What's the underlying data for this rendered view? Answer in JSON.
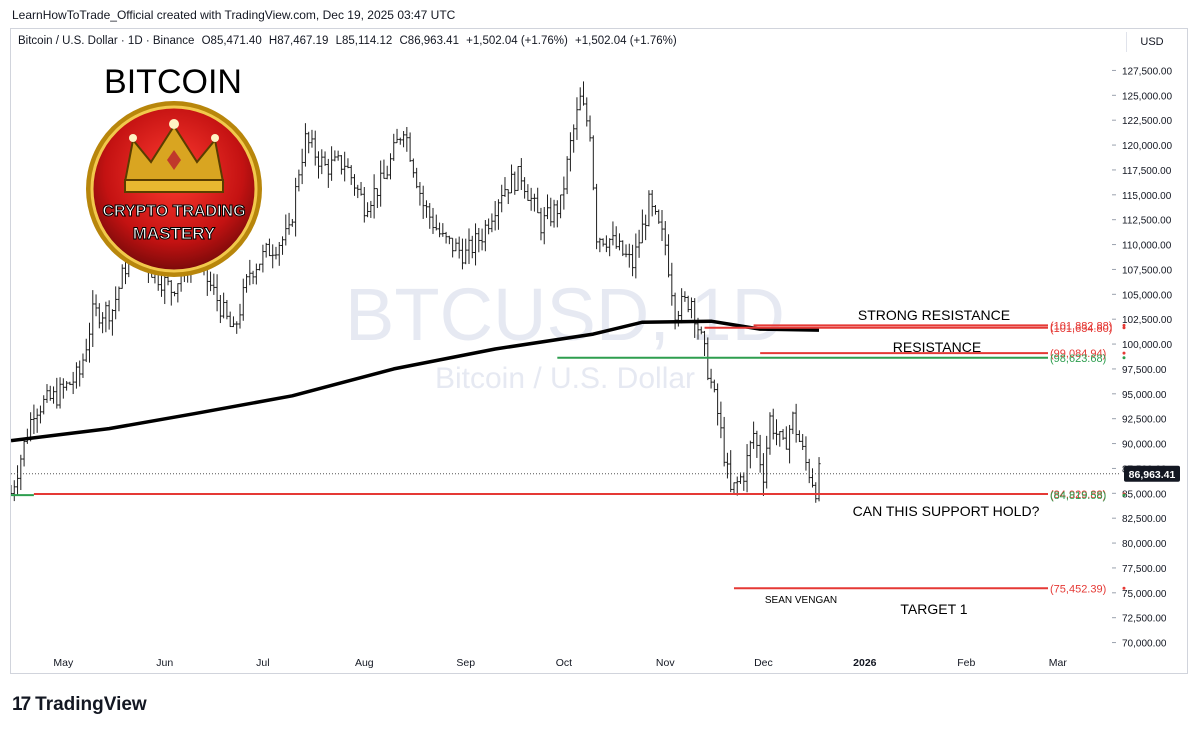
{
  "header": {
    "credit": "LearnHowToTrade_Official created with TradingView.com, Dec 19, 2025 03:47 UTC",
    "symbol": "Bitcoin / U.S. Dollar · 1D · Binance",
    "open": "O85,471.40",
    "high": "H87,467.19",
    "low": "L85,114.12",
    "close": "C86,963.41",
    "change1": "+1,502.04 (+1.76%)",
    "change2": "+1,502.04 (+1.76%)",
    "currency_button": "USD"
  },
  "overlay": {
    "title": "BITCOIN",
    "badge_line1": "CRYPTO TRADING",
    "badge_line2": "MASTERY",
    "watermark_symbol": "BTCUSD, 1D",
    "watermark_name": "Bitcoin / U.S. Dollar",
    "strong_resistance_label": "STRONG RESISTANCE",
    "resistance_label": "RESISTANCE",
    "support_question": "CAN THIS SUPPORT HOLD?",
    "author": "SEAN VENGAN",
    "target_label": "TARGET 1"
  },
  "footer": {
    "brand_mark": "17",
    "brand_text": "TradingView"
  },
  "colors": {
    "candle": "#1e1e1e",
    "ma": "#000000",
    "red_line": "#e53935",
    "green_line": "#2e9e4f",
    "price_tag": "#131722",
    "badge_red": "#d42020",
    "badge_gold": "#d4a017"
  },
  "chart_data": {
    "type": "candlestick",
    "symbol": "BTCUSD",
    "timeframe": "1D",
    "ylim": [
      68750,
      128750
    ],
    "y_ticks": [
      "70,000.00",
      "72,500.00",
      "75,000.00",
      "77,500.00",
      "80,000.00",
      "82,500.00",
      "85,000.00",
      "87,500.00",
      "90,000.00",
      "92,500.00",
      "95,000.00",
      "97,500.00",
      "100,000.00",
      "102,500.00",
      "105,000.00",
      "107,500.00",
      "110,000.00",
      "112,500.00",
      "115,000.00",
      "117,500.00",
      "120,000.00",
      "122,500.00",
      "125,000.00",
      "127,500.00"
    ],
    "x_ticks": [
      "May",
      "Jun",
      "Jul",
      "Aug",
      "Sep",
      "Oct",
      "Nov",
      "Dec",
      "2026",
      "Feb",
      "Mar"
    ],
    "x_range": [
      "2025-04-15",
      "2026-03-20"
    ],
    "closes": [
      [
        "2025-04-15",
        85000
      ],
      [
        "2025-04-22",
        93500
      ],
      [
        "2025-04-29",
        94800
      ],
      [
        "2025-05-06",
        97000
      ],
      [
        "2025-05-10",
        103000
      ],
      [
        "2025-05-16",
        103500
      ],
      [
        "2025-05-22",
        110000
      ],
      [
        "2025-05-28",
        107500
      ],
      [
        "2025-06-03",
        105500
      ],
      [
        "2025-06-10",
        109000
      ],
      [
        "2025-06-17",
        104500
      ],
      [
        "2025-06-22",
        101000
      ],
      [
        "2025-06-27",
        107300
      ],
      [
        "2025-07-03",
        109500
      ],
      [
        "2025-07-09",
        111000
      ],
      [
        "2025-07-12",
        117500
      ],
      [
        "2025-07-14",
        120500
      ],
      [
        "2025-07-20",
        117800
      ],
      [
        "2025-07-26",
        118200
      ],
      [
        "2025-08-01",
        114000
      ],
      [
        "2025-08-07",
        116500
      ],
      [
        "2025-08-13",
        122000
      ],
      [
        "2025-08-19",
        114000
      ],
      [
        "2025-08-25",
        110500
      ],
      [
        "2025-09-01",
        109000
      ],
      [
        "2025-09-06",
        111000
      ],
      [
        "2025-09-12",
        115500
      ],
      [
        "2025-09-18",
        117000
      ],
      [
        "2025-09-24",
        112000
      ],
      [
        "2025-09-30",
        114000
      ],
      [
        "2025-10-03",
        120000
      ],
      [
        "2025-10-06",
        124500
      ],
      [
        "2025-10-09",
        121500
      ],
      [
        "2025-10-11",
        111000
      ],
      [
        "2025-10-15",
        110500
      ],
      [
        "2025-10-22",
        108000
      ],
      [
        "2025-10-27",
        114000
      ],
      [
        "2025-11-01",
        110000
      ],
      [
        "2025-11-04",
        103500
      ],
      [
        "2025-11-09",
        104500
      ],
      [
        "2025-11-13",
        99000
      ],
      [
        "2025-11-17",
        93000
      ],
      [
        "2025-11-21",
        85000
      ],
      [
        "2025-11-25",
        87000
      ],
      [
        "2025-11-28",
        91000
      ],
      [
        "2025-12-01",
        87000
      ],
      [
        "2025-12-03",
        92500
      ],
      [
        "2025-12-07",
        89500
      ],
      [
        "2025-12-10",
        92500
      ],
      [
        "2025-12-14",
        88000
      ],
      [
        "2025-12-17",
        85500
      ],
      [
        "2025-12-18",
        86963.41
      ]
    ],
    "moving_average": [
      [
        "2025-04-15",
        90300
      ],
      [
        "2025-05-15",
        91500
      ],
      [
        "2025-06-10",
        93000
      ],
      [
        "2025-07-10",
        94800
      ],
      [
        "2025-08-10",
        97500
      ],
      [
        "2025-09-10",
        99500
      ],
      [
        "2025-10-10",
        101000
      ],
      [
        "2025-10-25",
        102200
      ],
      [
        "2025-11-15",
        102300
      ],
      [
        "2025-11-30",
        101500
      ],
      [
        "2025-12-18",
        101400
      ]
    ],
    "levels": [
      {
        "label": "(101,882.88)",
        "value": 101882.88,
        "color": "#e53935"
      },
      {
        "label": "(101,634.80)",
        "value": 101634.8,
        "color": "#e53935"
      },
      {
        "label": "(99,084.94)",
        "value": 99084.94,
        "color": "#e53935"
      },
      {
        "label": "(98,623.68)",
        "value": 98623.68,
        "color": "#2e9e4f"
      },
      {
        "label": "(84,929.88)",
        "value": 84929.88,
        "color": "#e53935"
      },
      {
        "label": "(84,819.58)",
        "value": 84819.58,
        "color": "#2e9e4f"
      },
      {
        "label": "(75,452.39)",
        "value": 75452.39,
        "color": "#e53935"
      }
    ],
    "last_price": {
      "value": 86963.41,
      "label": "86,963.41"
    }
  }
}
